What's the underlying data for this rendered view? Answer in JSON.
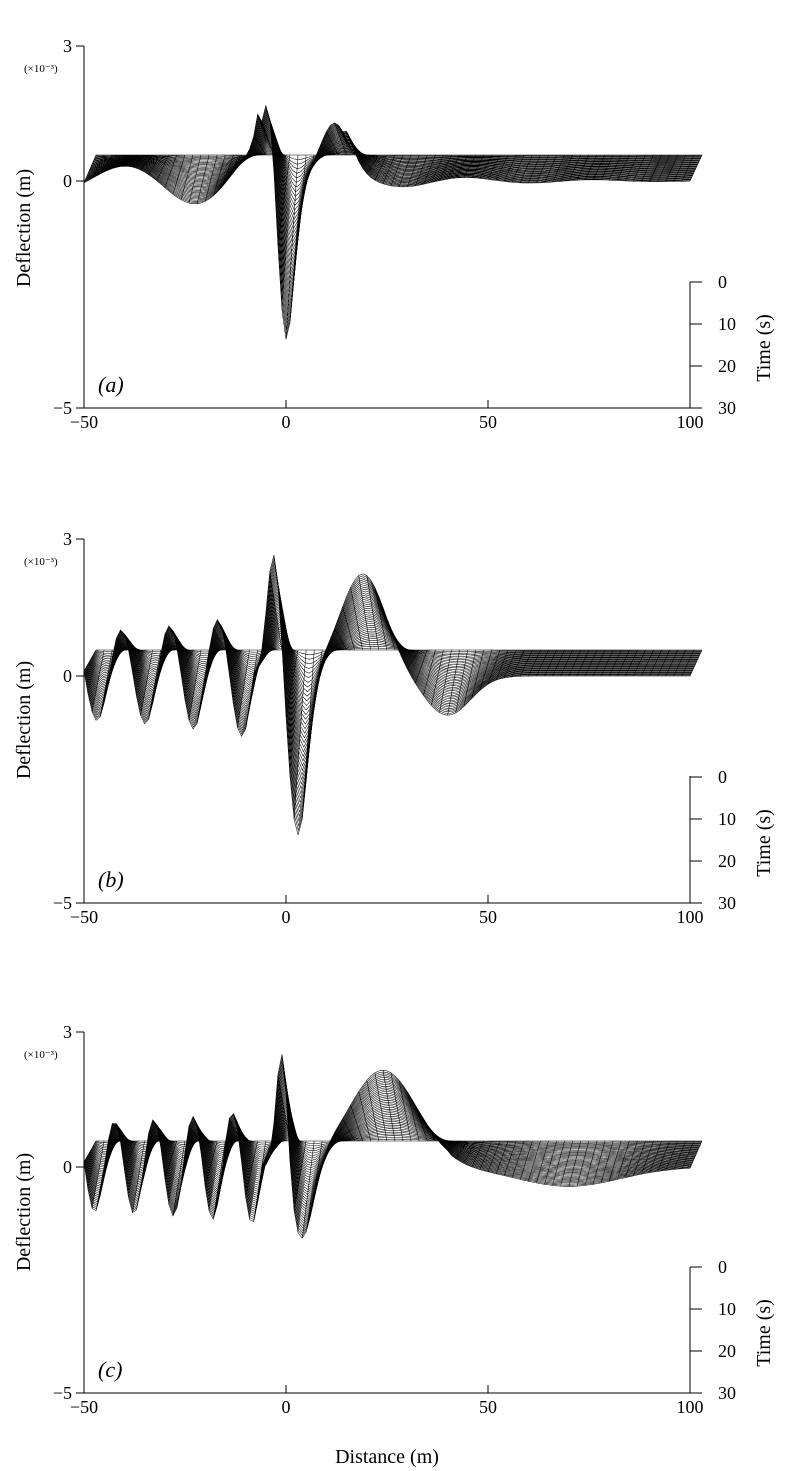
{
  "figure": {
    "xlabel": "Distance (m)",
    "ylabel": "Deflection (m)",
    "zlabel": "Time (s)",
    "y_multiplier": "(×10⁻³)"
  },
  "chart_data": [
    {
      "type": "surface",
      "panel_label": "(a)",
      "x_ticks": [
        -50,
        0,
        50,
        100
      ],
      "xlim": [
        -50,
        100
      ],
      "y_ticks": [
        3,
        0,
        -5
      ],
      "ylim": [
        -5,
        3
      ],
      "time_ticks": [
        0,
        10,
        20,
        30
      ],
      "time_range": [
        0,
        30
      ],
      "peak_deflection_approx": -4.2,
      "peak_location_approx": 0
    },
    {
      "type": "surface",
      "panel_label": "(b)",
      "x_ticks": [
        -50,
        0,
        50,
        100
      ],
      "xlim": [
        -50,
        100
      ],
      "y_ticks": [
        3,
        0,
        -5
      ],
      "ylim": [
        -5,
        3
      ],
      "time_ticks": [
        0,
        10,
        20,
        30
      ],
      "time_range": [
        0,
        30
      ],
      "peak_deflection_approx": -4.1,
      "peak_location_approx": 3
    },
    {
      "type": "surface",
      "panel_label": "(c)",
      "x_ticks": [
        -50,
        0,
        50,
        100
      ],
      "xlim": [
        -50,
        100
      ],
      "y_ticks": [
        3,
        0,
        -5
      ],
      "ylim": [
        -5,
        3
      ],
      "time_ticks": [
        0,
        10,
        20,
        30
      ],
      "time_range": [
        0,
        30
      ],
      "peak_deflection_approx": -2.0,
      "peak_location_approx": 4
    }
  ]
}
